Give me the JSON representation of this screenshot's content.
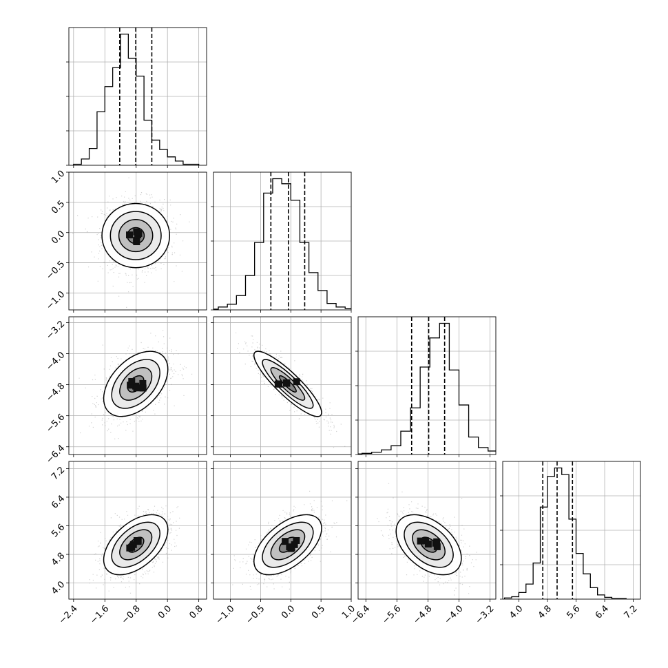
{
  "chart_data": {
    "type": "corner",
    "grid": true,
    "colors": {
      "line": "#000000",
      "grid": "#b0b0b0",
      "points": "#9a9a9a"
    },
    "params": [
      {
        "ticks": [
          -2.4,
          -1.6,
          -0.8,
          0.0,
          0.8
        ],
        "range": [
          -2.52,
          1.0
        ],
        "quantiles": [
          -1.22,
          -0.81,
          -0.4
        ]
      },
      {
        "ticks": [
          -1.0,
          -0.5,
          0.0,
          0.5,
          1.0
        ],
        "range": [
          -1.28,
          1.0
        ],
        "quantiles": [
          -0.33,
          -0.04,
          0.23
        ]
      },
      {
        "ticks": [
          -6.4,
          -5.6,
          -4.8,
          -4.0,
          -3.2
        ],
        "range": [
          -6.6,
          -3.05
        ],
        "quantiles": [
          -5.22,
          -4.78,
          -4.37
        ]
      },
      {
        "ticks": [
          4.0,
          4.8,
          5.6,
          6.4,
          7.2
        ],
        "range": [
          3.55,
          7.4
        ],
        "quantiles": [
          4.67,
          5.07,
          5.5
        ]
      }
    ],
    "histograms": [
      {
        "bin_edges": [
          -2.4,
          -2.2,
          -2.0,
          -1.8,
          -1.6,
          -1.4,
          -1.2,
          -1.0,
          -0.8,
          -0.6,
          -0.4,
          -0.2,
          0.0,
          0.2,
          0.4,
          0.6,
          0.8
        ],
        "counts": [
          1,
          6,
          16,
          51,
          75,
          93,
          125,
          102,
          85,
          43,
          24,
          15,
          8,
          4,
          1,
          1
        ]
      },
      {
        "bin_edges": [
          -1.35,
          -1.2,
          -1.05,
          -0.9,
          -0.75,
          -0.6,
          -0.45,
          -0.3,
          -0.15,
          0.0,
          0.15,
          0.3,
          0.45,
          0.6,
          0.75,
          0.9,
          1.05
        ],
        "counts": [
          1,
          4,
          8,
          20,
          48,
          94,
          163,
          183,
          176,
          153,
          94,
          52,
          27,
          9,
          4,
          2
        ]
      },
      {
        "bin_edges": [
          -6.75,
          -6.5,
          -6.25,
          -6.0,
          -5.75,
          -5.5,
          -5.25,
          -5.0,
          -4.75,
          -4.5,
          -4.25,
          -4.0,
          -3.75,
          -3.5,
          -3.25,
          -3.0,
          -2.75
        ],
        "counts": [
          1,
          2,
          4,
          8,
          15,
          40,
          80,
          150,
          200,
          225,
          145,
          85,
          30,
          12,
          6,
          2
        ]
      },
      {
        "bin_edges": [
          3.6,
          3.8,
          4.0,
          4.2,
          4.4,
          4.6,
          4.8,
          5.0,
          5.2,
          5.4,
          5.6,
          5.8,
          6.0,
          6.2,
          6.4,
          6.6,
          6.8,
          7.0
        ],
        "counts": [
          2,
          4,
          11,
          25,
          60,
          153,
          204,
          218,
          207,
          133,
          76,
          42,
          19,
          7,
          3,
          1,
          1
        ]
      }
    ],
    "pairs": [
      {
        "row": 1,
        "col": 0,
        "mean": [
          -0.81,
          -0.05
        ],
        "sd": [
          0.41,
          0.28
        ],
        "rho": 0.0
      },
      {
        "row": 2,
        "col": 0,
        "mean": [
          -0.81,
          -4.78
        ],
        "sd": [
          0.41,
          0.42
        ],
        "rho": 0.45
      },
      {
        "row": 2,
        "col": 1,
        "mean": [
          -0.05,
          -4.78
        ],
        "sd": [
          0.28,
          0.42
        ],
        "rho": -0.88
      },
      {
        "row": 3,
        "col": 0,
        "mean": [
          -0.81,
          5.07
        ],
        "sd": [
          0.41,
          0.42
        ],
        "rho": 0.5
      },
      {
        "row": 3,
        "col": 1,
        "mean": [
          -0.05,
          5.07
        ],
        "sd": [
          0.28,
          0.42
        ],
        "rho": 0.55
      },
      {
        "row": 3,
        "col": 2,
        "mean": [
          -4.78,
          5.07
        ],
        "sd": [
          0.42,
          0.42
        ],
        "rho": -0.45
      }
    ]
  }
}
